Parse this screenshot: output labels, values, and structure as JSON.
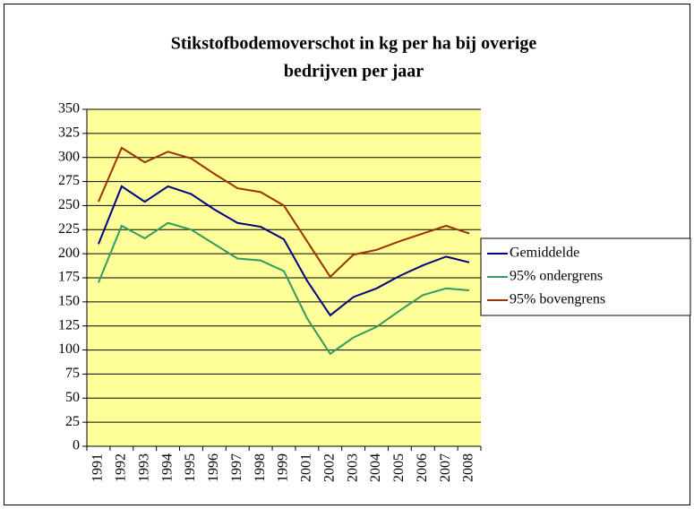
{
  "chart_data": {
    "type": "line",
    "title": [
      "Stikstofbodemoverschot in kg per ha bij overige",
      "bedrijven per jaar"
    ],
    "categories": [
      "1991",
      "1992",
      "1993",
      "1994",
      "1995",
      "1996",
      "1997",
      "1998",
      "1999",
      "2001",
      "2002",
      "2003",
      "2004",
      "2005",
      "2006",
      "2007",
      "2008"
    ],
    "series": [
      {
        "name": "Gemiddelde",
        "color": "#000080",
        "values": [
          210,
          270,
          254,
          270,
          262,
          246,
          232,
          228,
          215,
          172,
          136,
          155,
          164,
          177,
          188,
          197,
          191
        ]
      },
      {
        "name": "95% ondergrens",
        "color": "#339966",
        "values": [
          170,
          229,
          216,
          232,
          225,
          210,
          195,
          193,
          182,
          133,
          96,
          113,
          124,
          141,
          157,
          164,
          162
        ]
      },
      {
        "name": "95% bovengrens",
        "color": "#993300",
        "values": [
          254,
          310,
          295,
          306,
          299,
          283,
          268,
          264,
          250,
          213,
          176,
          199,
          204,
          213,
          221,
          229,
          221
        ]
      }
    ],
    "ylim": [
      0,
      350
    ],
    "yticks": [
      0,
      25,
      50,
      75,
      100,
      125,
      150,
      175,
      200,
      225,
      250,
      275,
      300,
      325,
      350
    ],
    "grid": true,
    "legend": "right",
    "plot_background": "#ffff99"
  }
}
